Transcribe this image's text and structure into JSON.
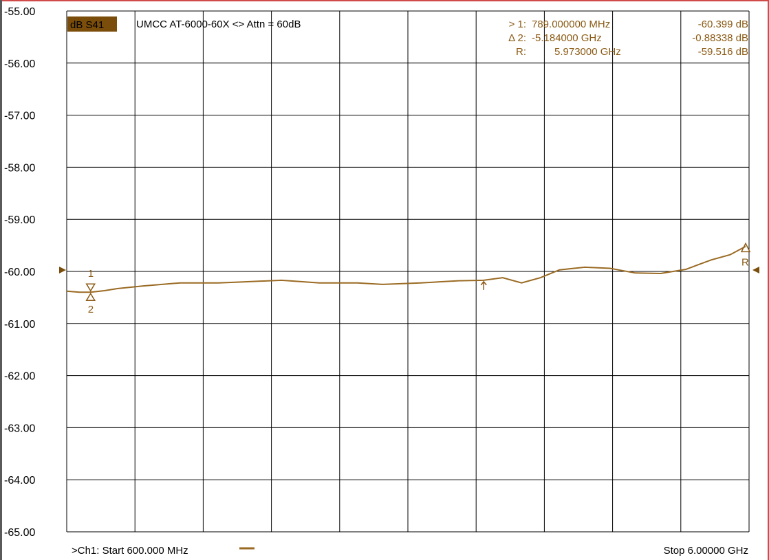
{
  "colors": {
    "trace": "#9a6a22",
    "marker_text": "#8b5a14",
    "grid": "#000000",
    "title_box": "#7a4d0a",
    "frame": "#d14a4a"
  },
  "header": {
    "trace_label": "dB S41",
    "title": "UMCC  AT-6000-60X <> Attn = 60dB"
  },
  "markers_table": [
    {
      "id": "> 1:",
      "freq": "789.000000 MHz",
      "value": "-60.399 dB"
    },
    {
      "id": "Δ 2:",
      "freq": "-5.184000 GHz",
      "value": "-0.88338 dB"
    },
    {
      "id": "R:",
      "freq": "5.973000 GHz",
      "value": "-59.516 dB"
    }
  ],
  "footer": {
    "start": ">Ch1: Start  600.000 MHz",
    "stop": "Stop  6.00000 GHz"
  },
  "chart_data": {
    "type": "line",
    "xlabel": "",
    "ylabel": "",
    "xlim": [
      0.6,
      6.0
    ],
    "ylim": [
      -65,
      -55
    ],
    "y_ticks": [
      "-55.00",
      "-56.00",
      "-57.00",
      "-58.00",
      "-59.00",
      "-60.00",
      "-61.00",
      "-62.00",
      "-63.00",
      "-64.00",
      "-65.00"
    ],
    "grid": true,
    "reference_level": -60,
    "series": [
      {
        "x": [
          0.6,
          0.7,
          0.789,
          0.9,
          1.0,
          1.2,
          1.5,
          1.8,
          2.0,
          2.3,
          2.6,
          2.9,
          3.1,
          3.4,
          3.7,
          3.9,
          4.05,
          4.2,
          4.35,
          4.5,
          4.7,
          4.9,
          5.1,
          5.3,
          5.5,
          5.7,
          5.85,
          5.973
        ],
        "y": [
          -60.38,
          -60.4,
          -60.4,
          -60.37,
          -60.33,
          -60.28,
          -60.22,
          -60.22,
          -60.2,
          -60.17,
          -60.22,
          -60.22,
          -60.25,
          -60.22,
          -60.18,
          -60.17,
          -60.12,
          -60.22,
          -60.12,
          -59.97,
          -59.92,
          -59.94,
          -60.03,
          -60.04,
          -59.96,
          -59.78,
          -59.68,
          -59.52
        ]
      }
    ],
    "markers": [
      {
        "label": "1",
        "x": 0.789,
        "y": -60.399
      },
      {
        "label": "2",
        "x": 0.789,
        "y": -60.399
      },
      {
        "label": "R",
        "x": 5.973,
        "y": -59.516
      },
      {
        "label": "",
        "x": 3.9,
        "y": -60.17
      }
    ]
  }
}
